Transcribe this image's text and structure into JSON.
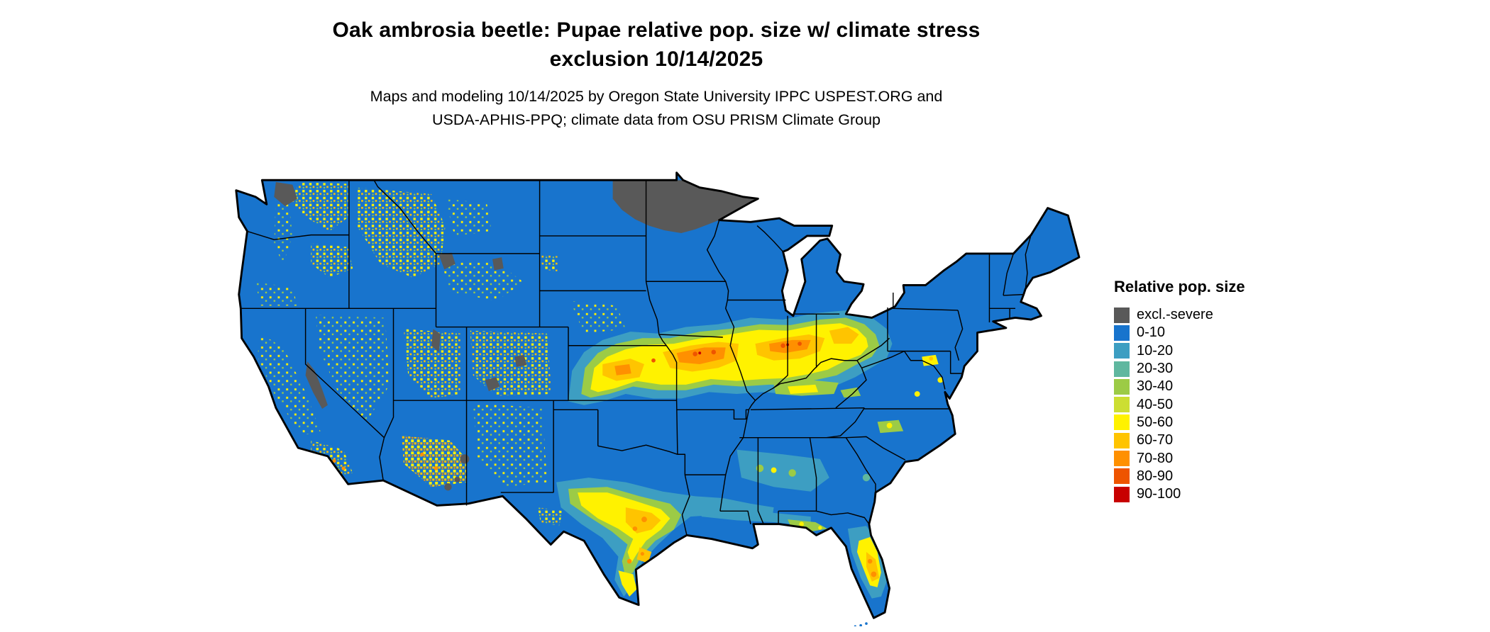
{
  "header": {
    "title_line1": "Oak ambrosia beetle: Pupae relative pop. size w/ climate stress",
    "title_line2": "exclusion 10/14/2025",
    "subtitle_line1": "Maps and modeling 10/14/2025 by Oregon State University IPPC USPEST.ORG and",
    "subtitle_line2": "USDA-APHIS-PPQ; climate data from OSU PRISM Climate Group"
  },
  "legend": {
    "title": "Relative pop. size",
    "items": [
      {
        "label": "excl.-severe",
        "key": "excl",
        "color": "#595959"
      },
      {
        "label": "0-10",
        "key": "c0_10",
        "color": "#1874CD"
      },
      {
        "label": "10-20",
        "key": "c10_20",
        "color": "#3D9EC2"
      },
      {
        "label": "20-30",
        "key": "c20_30",
        "color": "#5FB79F"
      },
      {
        "label": "30-40",
        "key": "c30_40",
        "color": "#9CCB46"
      },
      {
        "label": "40-50",
        "key": "c40_50",
        "color": "#CCDE32"
      },
      {
        "label": "50-60",
        "key": "c50_60",
        "color": "#FFF200"
      },
      {
        "label": "60-70",
        "key": "c60_70",
        "color": "#FFC400"
      },
      {
        "label": "70-80",
        "key": "c70_80",
        "color": "#FF9000"
      },
      {
        "label": "80-90",
        "key": "c80_90",
        "color": "#EE5400"
      },
      {
        "label": "90-100",
        "key": "c90_100",
        "color": "#C80000"
      }
    ]
  }
}
